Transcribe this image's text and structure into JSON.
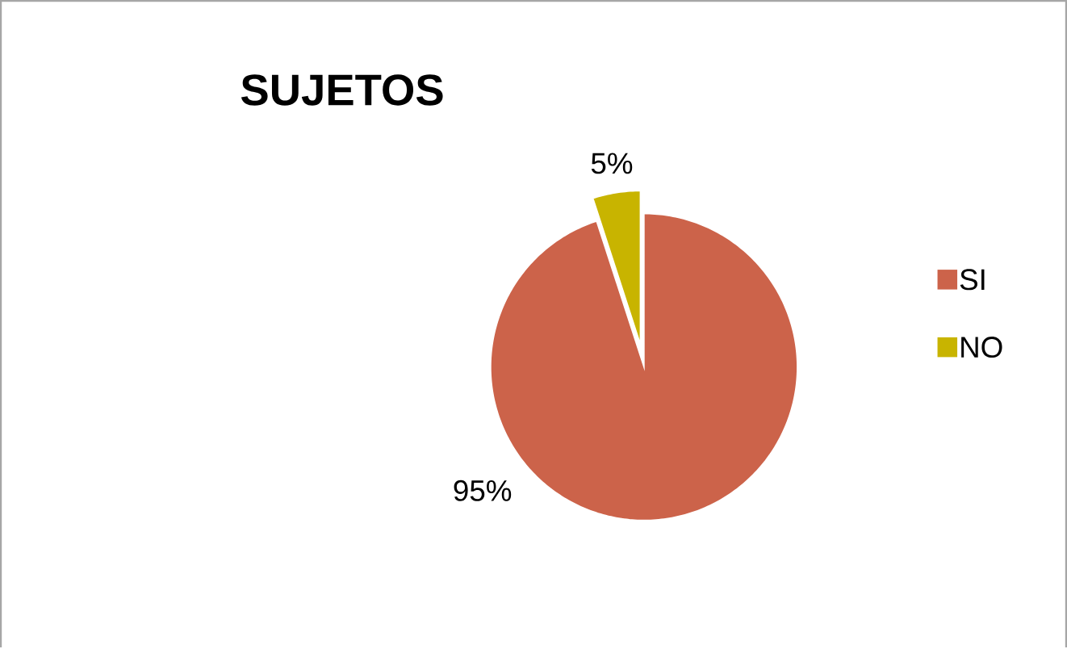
{
  "chart_data": {
    "type": "pie",
    "title": "SUJETOS",
    "categories": [
      "SI",
      "NO"
    ],
    "values": [
      95,
      5
    ],
    "value_labels": [
      "95%",
      "5%"
    ],
    "colors": [
      "#cc634a",
      "#c8b400"
    ],
    "legend": "right"
  }
}
